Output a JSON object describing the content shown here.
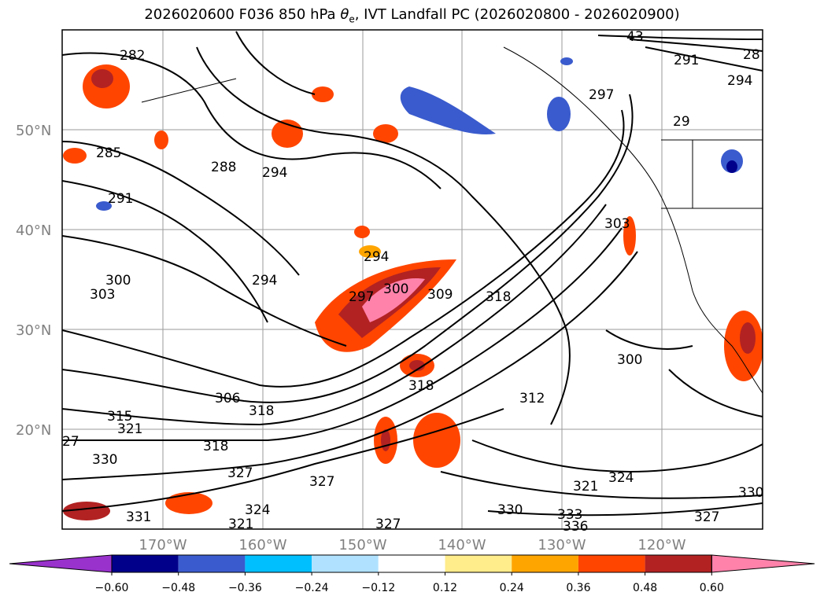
{
  "title": {
    "prefix": "2026020600 F036 850 hPa ",
    "theta": "θ",
    "sub": "e",
    "suffix": ", IVT Landfall PC (2026020800 - 2026020900)"
  },
  "axes": {
    "latitude_labels": [
      "50°N",
      "40°N",
      "30°N",
      "20°N"
    ],
    "longitude_labels": [
      "170°W",
      "160°W",
      "150°W",
      "140°W",
      "130°W",
      "120°W"
    ]
  },
  "contour_labels": [
    "282",
    "285",
    "288",
    "291",
    "294",
    "294",
    "294",
    "297",
    "300",
    "300",
    "303",
    "309",
    "318",
    "306",
    "318",
    "315",
    "321",
    "27",
    "330",
    "318",
    "327",
    "318",
    "331",
    "327",
    "324",
    "321",
    "327",
    "312",
    "300",
    "321",
    "324",
    "330",
    "333",
    "336",
    "327",
    "330",
    "303",
    "297",
    "291",
    "294",
    "28",
    "43",
    "29"
  ],
  "colorbar": {
    "tick_labels": [
      "−0.60",
      "−0.48",
      "−0.36",
      "−0.24",
      "−0.12",
      "0.12",
      "0.24",
      "0.36",
      "0.48",
      "0.60"
    ],
    "colors": [
      "#9932CC",
      "#00008B",
      "#3A5BCD",
      "#00BFFF",
      "#B0E2FF",
      "#FFFFFF",
      "#FFEC8B",
      "#FFA500",
      "#FF4500",
      "#B22222",
      "#FF82AB"
    ]
  }
}
